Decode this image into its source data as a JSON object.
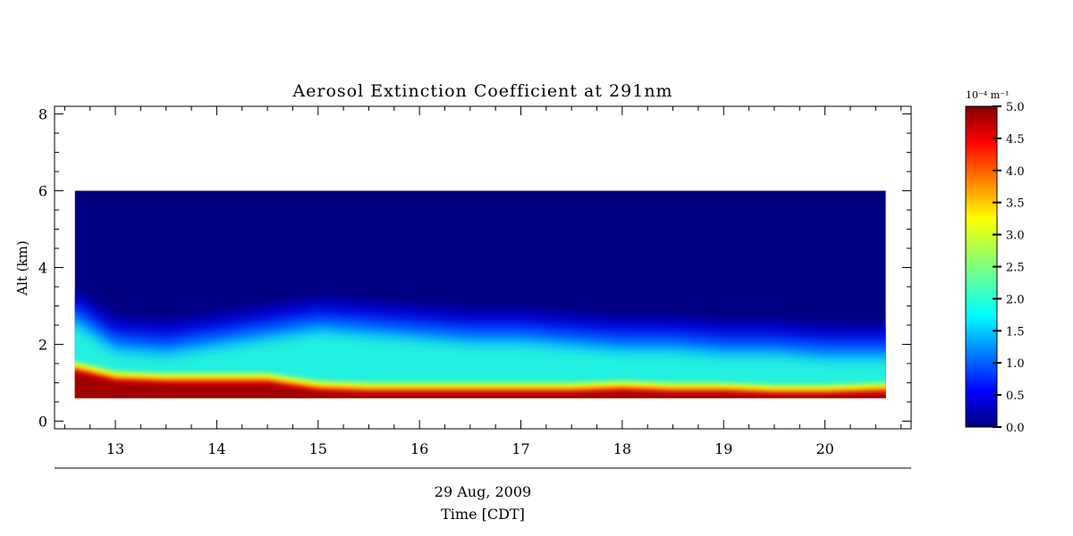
{
  "chart_data": {
    "type": "heatmap",
    "title": "Aerosol Extinction Coefficient at 291nm",
    "ylabel": "Alt (km)",
    "date_label": "29 Aug, 2009",
    "xlabel": "Time [CDT]",
    "xlim": [
      12.4,
      20.85
    ],
    "ylim": [
      -0.2,
      8.2
    ],
    "x_ticks": [
      "13",
      "14",
      "15",
      "16",
      "17",
      "18",
      "19",
      "20"
    ],
    "y_ticks": [
      "0",
      "2",
      "4",
      "6",
      "8"
    ],
    "data_extent": {
      "time": [
        12.6,
        20.6
      ],
      "alt_km": [
        0.6,
        6.0
      ]
    },
    "layer_profile": {
      "time": [
        12.6,
        13.0,
        13.5,
        14.0,
        14.5,
        15.0,
        15.5,
        16.0,
        16.5,
        17.0,
        17.5,
        18.0,
        18.5,
        19.0,
        19.5,
        20.0,
        20.6
      ],
      "surface_layer_top_km": [
        1.5,
        1.25,
        1.2,
        1.2,
        1.2,
        1.0,
        0.95,
        0.95,
        0.95,
        0.95,
        0.95,
        1.0,
        0.95,
        0.95,
        0.9,
        0.9,
        0.95
      ],
      "aerosol_layer_top_km": [
        2.9,
        2.2,
        2.1,
        2.3,
        2.5,
        2.7,
        2.6,
        2.5,
        2.4,
        2.4,
        2.3,
        2.2,
        2.2,
        2.1,
        2.1,
        2.0,
        2.0
      ]
    },
    "colorbar": {
      "unit_label": "10⁻⁴ m⁻¹",
      "range": [
        0.0,
        5.0
      ],
      "tick_labels": [
        "0.0",
        "0.5",
        "1.0",
        "1.5",
        "2.0",
        "2.5",
        "3.0",
        "3.5",
        "4.0",
        "4.5",
        "5.0"
      ],
      "colormap": "jet"
    },
    "grid": false
  }
}
